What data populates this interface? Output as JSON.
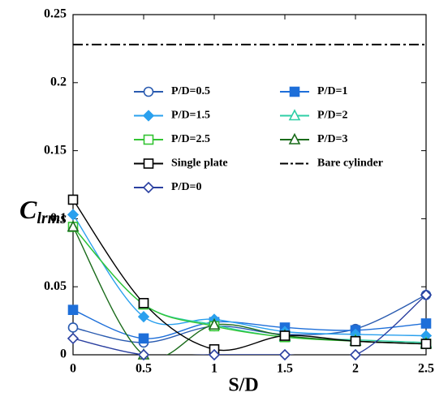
{
  "chart_data": {
    "type": "line",
    "x_label": "S/D",
    "y_label": "C",
    "y_label_sub": "lrms",
    "x": [
      0,
      0.5,
      1,
      1.5,
      2,
      2.5
    ],
    "xlim": [
      0,
      2.5
    ],
    "xticks": [
      0,
      0.5,
      1,
      1.5,
      2,
      2.5
    ],
    "ylim": [
      0,
      0.25
    ],
    "yticks": [
      0,
      0.05,
      0.1,
      0.15,
      0.2,
      0.25
    ],
    "grid": false,
    "legend": "top",
    "series": [
      {
        "name": "P/D=0.5",
        "color": "#2a5bb0",
        "marker": "circle",
        "filled": false,
        "values": [
          0.02,
          0.009,
          0.021,
          0.015,
          0.019,
          0.044
        ]
      },
      {
        "name": "P/D=1",
        "color": "#1e6fd9",
        "marker": "square",
        "filled": true,
        "values": [
          0.033,
          0.012,
          0.024,
          0.02,
          0.018,
          0.023
        ]
      },
      {
        "name": "P/D=1.5",
        "color": "#2aa0ee",
        "marker": "diamond",
        "filled": true,
        "values": [
          0.103,
          0.028,
          0.026,
          0.017,
          0.015,
          0.014
        ]
      },
      {
        "name": "P/D=2",
        "color": "#2ecfa6",
        "marker": "triangle",
        "filled": false,
        "values": [
          0.094,
          0.037,
          0.022,
          0.013,
          0.011,
          0.009
        ]
      },
      {
        "name": "P/D=2.5",
        "color": "#33c433",
        "marker": "square",
        "filled": false,
        "values": [
          0.094,
          0.037,
          0.021,
          0.013,
          0.01,
          0.008
        ]
      },
      {
        "name": "P/D=3",
        "color": "#1a6b1a",
        "marker": "triangle",
        "filled": false,
        "values": [
          0.094,
          0,
          0.022,
          0.014,
          0.01,
          0.008
        ]
      },
      {
        "name": "Single plate",
        "color": "#000000",
        "marker": "square",
        "filled": false,
        "values": [
          0.114,
          0.038,
          0.004,
          0.014,
          0.01,
          0.008
        ]
      },
      {
        "name": "Bare cylinder",
        "color": "#000000",
        "marker": "none",
        "dash": "dashdot",
        "values": [
          0.228,
          0.228,
          0.228,
          0.228,
          0.228,
          0.228
        ]
      },
      {
        "name": "P/D=0",
        "color": "#2a3fa0",
        "marker": "diamond",
        "filled": false,
        "values": [
          0.012,
          0,
          0,
          0,
          0,
          0.044
        ]
      }
    ]
  }
}
